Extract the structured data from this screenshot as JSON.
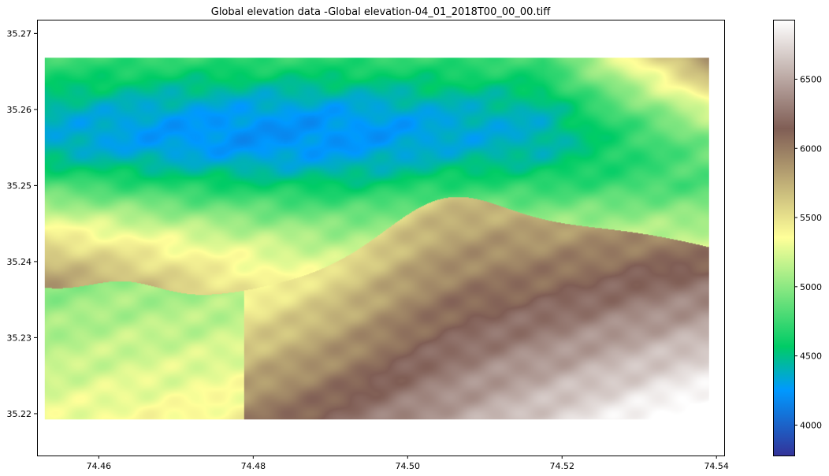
{
  "chart_data": {
    "type": "heatmap",
    "title": "Global elevation data -Global elevation-04_01_2018T00_00_00.tiff",
    "xlabel": "",
    "ylabel": "",
    "xlim": [
      74.452,
      74.541
    ],
    "ylim": [
      35.2145,
      35.2718
    ],
    "data_extent": {
      "x": [
        74.453,
        74.539
      ],
      "y": [
        35.2192,
        35.2668
      ]
    },
    "xticks": [
      74.46,
      74.48,
      74.5,
      74.52,
      74.54
    ],
    "xtick_labels": [
      "74.46",
      "74.48",
      "74.50",
      "74.52",
      "74.54"
    ],
    "yticks": [
      35.22,
      35.23,
      35.24,
      35.25,
      35.26,
      35.27
    ],
    "ytick_labels": [
      "35.22",
      "35.23",
      "35.24",
      "35.25",
      "35.26",
      "35.27"
    ],
    "colormap": "terrain",
    "colorbar": {
      "range": [
        3780,
        6930
      ],
      "ticks": [
        4000,
        4500,
        5000,
        5500,
        6000,
        6500
      ],
      "tick_labels": [
        "4000",
        "4500",
        "5000",
        "5500",
        "6000",
        "6500"
      ],
      "colors": [
        {
          "stop": 0.0,
          "color": "#333399"
        },
        {
          "stop": 0.15,
          "color": "#0099ff"
        },
        {
          "stop": 0.25,
          "color": "#00cc66"
        },
        {
          "stop": 0.5,
          "color": "#ffff99"
        },
        {
          "stop": 0.75,
          "color": "#805e55"
        },
        {
          "stop": 1.0,
          "color": "#ffffff"
        }
      ]
    },
    "grid": false,
    "legend": "colorbar-right"
  }
}
